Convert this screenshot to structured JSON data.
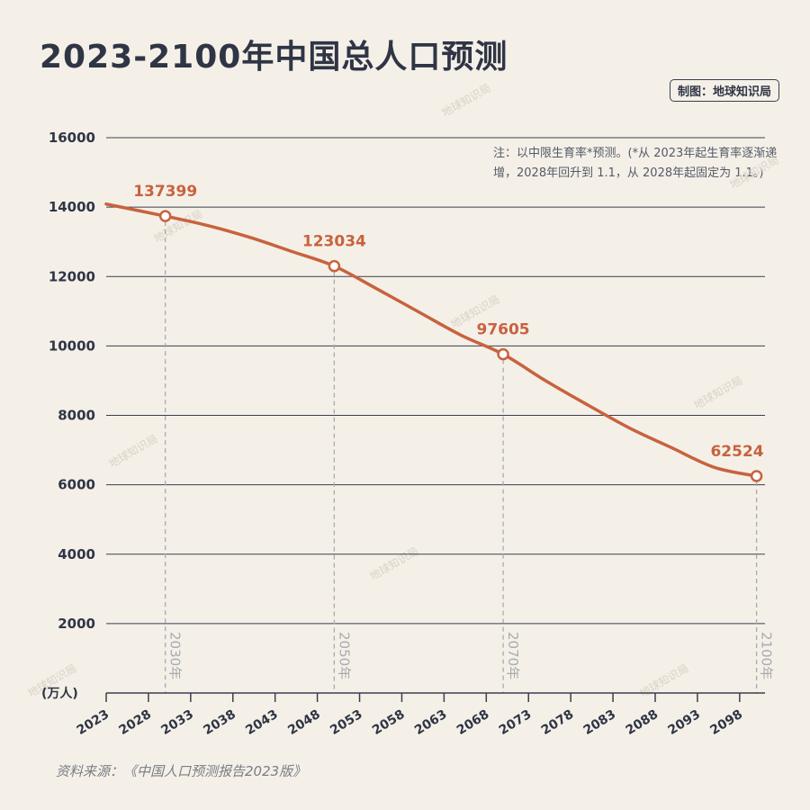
{
  "title": "2023-2100年中国总人口预测",
  "credit": "制图：地球知识局",
  "note": "注：以中限生育率*预测。(*从 2023年起生育率逐渐递增，2028年回升到 1.1，从 2028年起固定为 1.1。)",
  "source": "资料来源：《中国人口预测报告2023版》",
  "watermark": "地球知识局",
  "colors": {
    "line": "#c8623e",
    "grid": "#3a3f4e",
    "background": "#f4f0e8",
    "text": "#2f3545"
  },
  "chart_data": {
    "type": "line",
    "title": "2023-2100年中国总人口预测",
    "ylabel": "(万人)",
    "ylim": [
      0,
      16000
    ],
    "yticks": [
      2000,
      4000,
      6000,
      8000,
      10000,
      12000,
      14000,
      16000
    ],
    "xlim": [
      2023,
      2101
    ],
    "xticks": [
      2023,
      2028,
      2033,
      2038,
      2043,
      2048,
      2053,
      2058,
      2063,
      2068,
      2073,
      2078,
      2083,
      2088,
      2093,
      2098
    ],
    "grid": true,
    "x": [
      2023,
      2030,
      2035,
      2040,
      2045,
      2050,
      2055,
      2060,
      2065,
      2070,
      2075,
      2080,
      2085,
      2090,
      2095,
      2100
    ],
    "values": [
      14090,
      13740,
      13470,
      13130,
      12720,
      12300,
      11650,
      10980,
      10310,
      9760,
      9000,
      8300,
      7630,
      7060,
      6500,
      6250
    ],
    "markers": [
      {
        "x": 2030,
        "y": 13740,
        "label": "137399",
        "axis_label": "2030年"
      },
      {
        "x": 2050,
        "y": 12300,
        "label": "123034",
        "axis_label": "2050年"
      },
      {
        "x": 2070,
        "y": 9760,
        "label": "97605",
        "axis_label": "2070年"
      },
      {
        "x": 2100,
        "y": 6250,
        "label": "62524",
        "axis_label": "2100年"
      }
    ]
  }
}
